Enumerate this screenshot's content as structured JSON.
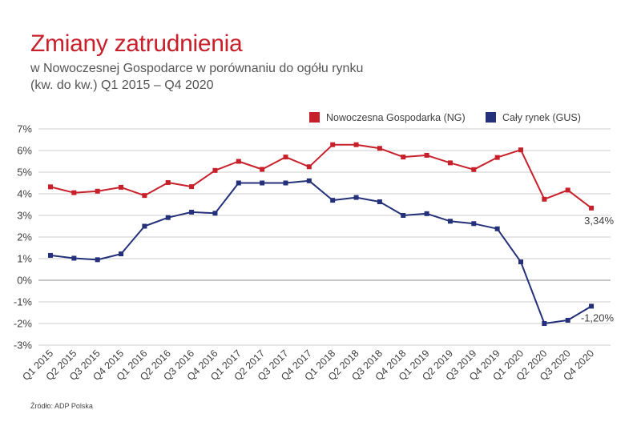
{
  "chart_data": {
    "type": "line",
    "title": "Zmiany zatrudnienia",
    "subtitle": [
      "w Nowoczesnej Gospodarce w porównaniu do ogółu rynku",
      "(kw. do kw.) Q1 2015 – Q4 2020"
    ],
    "categories": [
      "Q1 2015",
      "Q2 2015",
      "Q3 2015",
      "Q4 2015",
      "Q1 2016",
      "Q2 2016",
      "Q3 2016",
      "Q4 2016",
      "Q1 2017",
      "Q2 2017",
      "Q3 2017",
      "Q4 2017",
      "Q1 2018",
      "Q2 2018",
      "Q3 2018",
      "Q4 2018",
      "Q1 2019",
      "Q2 2019",
      "Q3 2019",
      "Q4 2019",
      "Q1 2020",
      "Q2 2020",
      "Q3 2020",
      "Q4 2020"
    ],
    "ylim": [
      -3,
      7
    ],
    "yticks": [
      "7%",
      "6%",
      "5%",
      "4%",
      "3%",
      "2%",
      "1%",
      "0%",
      "-1%",
      "-2%",
      "-3%"
    ],
    "grid": true,
    "legend_position": "top-right",
    "series": [
      {
        "name": "Nowoczesna Gospodarka (NG)",
        "color": "#c8202a",
        "values": [
          4.32,
          4.05,
          4.12,
          4.3,
          3.92,
          4.52,
          4.33,
          5.08,
          5.5,
          5.13,
          5.7,
          5.25,
          6.27,
          6.27,
          6.1,
          5.7,
          5.78,
          5.43,
          5.12,
          5.68,
          6.03,
          3.75,
          4.17,
          3.34
        ],
        "end_label": "3,34%"
      },
      {
        "name": "Cały rynek (GUS)",
        "color": "#24317a",
        "values": [
          1.15,
          1.02,
          0.95,
          1.22,
          2.5,
          2.9,
          3.15,
          3.1,
          4.5,
          4.5,
          4.5,
          4.6,
          3.7,
          3.83,
          3.63,
          3.0,
          3.08,
          2.73,
          2.62,
          2.38,
          0.85,
          -2.0,
          -1.85,
          -1.2
        ],
        "end_label": "-1,20%"
      }
    ]
  },
  "source": "Źródło: ADP Polska"
}
